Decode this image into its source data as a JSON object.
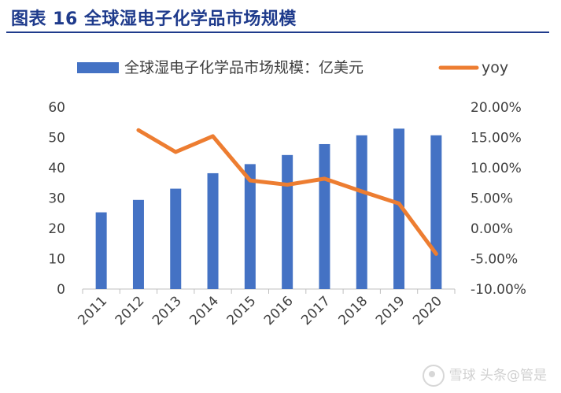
{
  "figure_title": "图表 16  全球湿电子化学品市场规模",
  "watermark": {
    "brand": "雪球",
    "author": "头条@管是"
  },
  "colors": {
    "bar": "#4472c4",
    "line": "#ed7d31",
    "title": "#1f3b8c",
    "axis_text": "#404040"
  },
  "chart_data": {
    "type": "bar",
    "categories": [
      "2011",
      "2012",
      "2013",
      "2014",
      "2015",
      "2016",
      "2017",
      "2018",
      "2019",
      "2020"
    ],
    "series": [
      {
        "name": "全球湿电子化学品市场规模：亿美元",
        "type": "bar",
        "axis": "left",
        "values": [
          25.3,
          29.4,
          33.1,
          38.2,
          41.2,
          44.2,
          47.8,
          50.7,
          52.9,
          50.7
        ]
      },
      {
        "name": "yoy",
        "type": "line",
        "axis": "right",
        "values": [
          null,
          16.2,
          12.6,
          15.2,
          7.9,
          7.2,
          8.2,
          6.1,
          4.1,
          -4.2
        ]
      }
    ],
    "y_left": {
      "lim": [
        0,
        60
      ],
      "ticks": [
        0,
        10,
        20,
        30,
        40,
        50,
        60
      ],
      "tick_labels": [
        "0",
        "10",
        "20",
        "30",
        "40",
        "50",
        "60"
      ]
    },
    "y_right": {
      "lim": [
        -10,
        20
      ],
      "ticks": [
        -10,
        -5,
        0,
        5,
        10,
        15,
        20
      ],
      "tick_labels": [
        "-10.00%",
        "-5.00%",
        "0.00%",
        "5.00%",
        "10.00%",
        "15.00%",
        "20.00%"
      ]
    },
    "legend": {
      "position": "top"
    },
    "grid": false
  }
}
